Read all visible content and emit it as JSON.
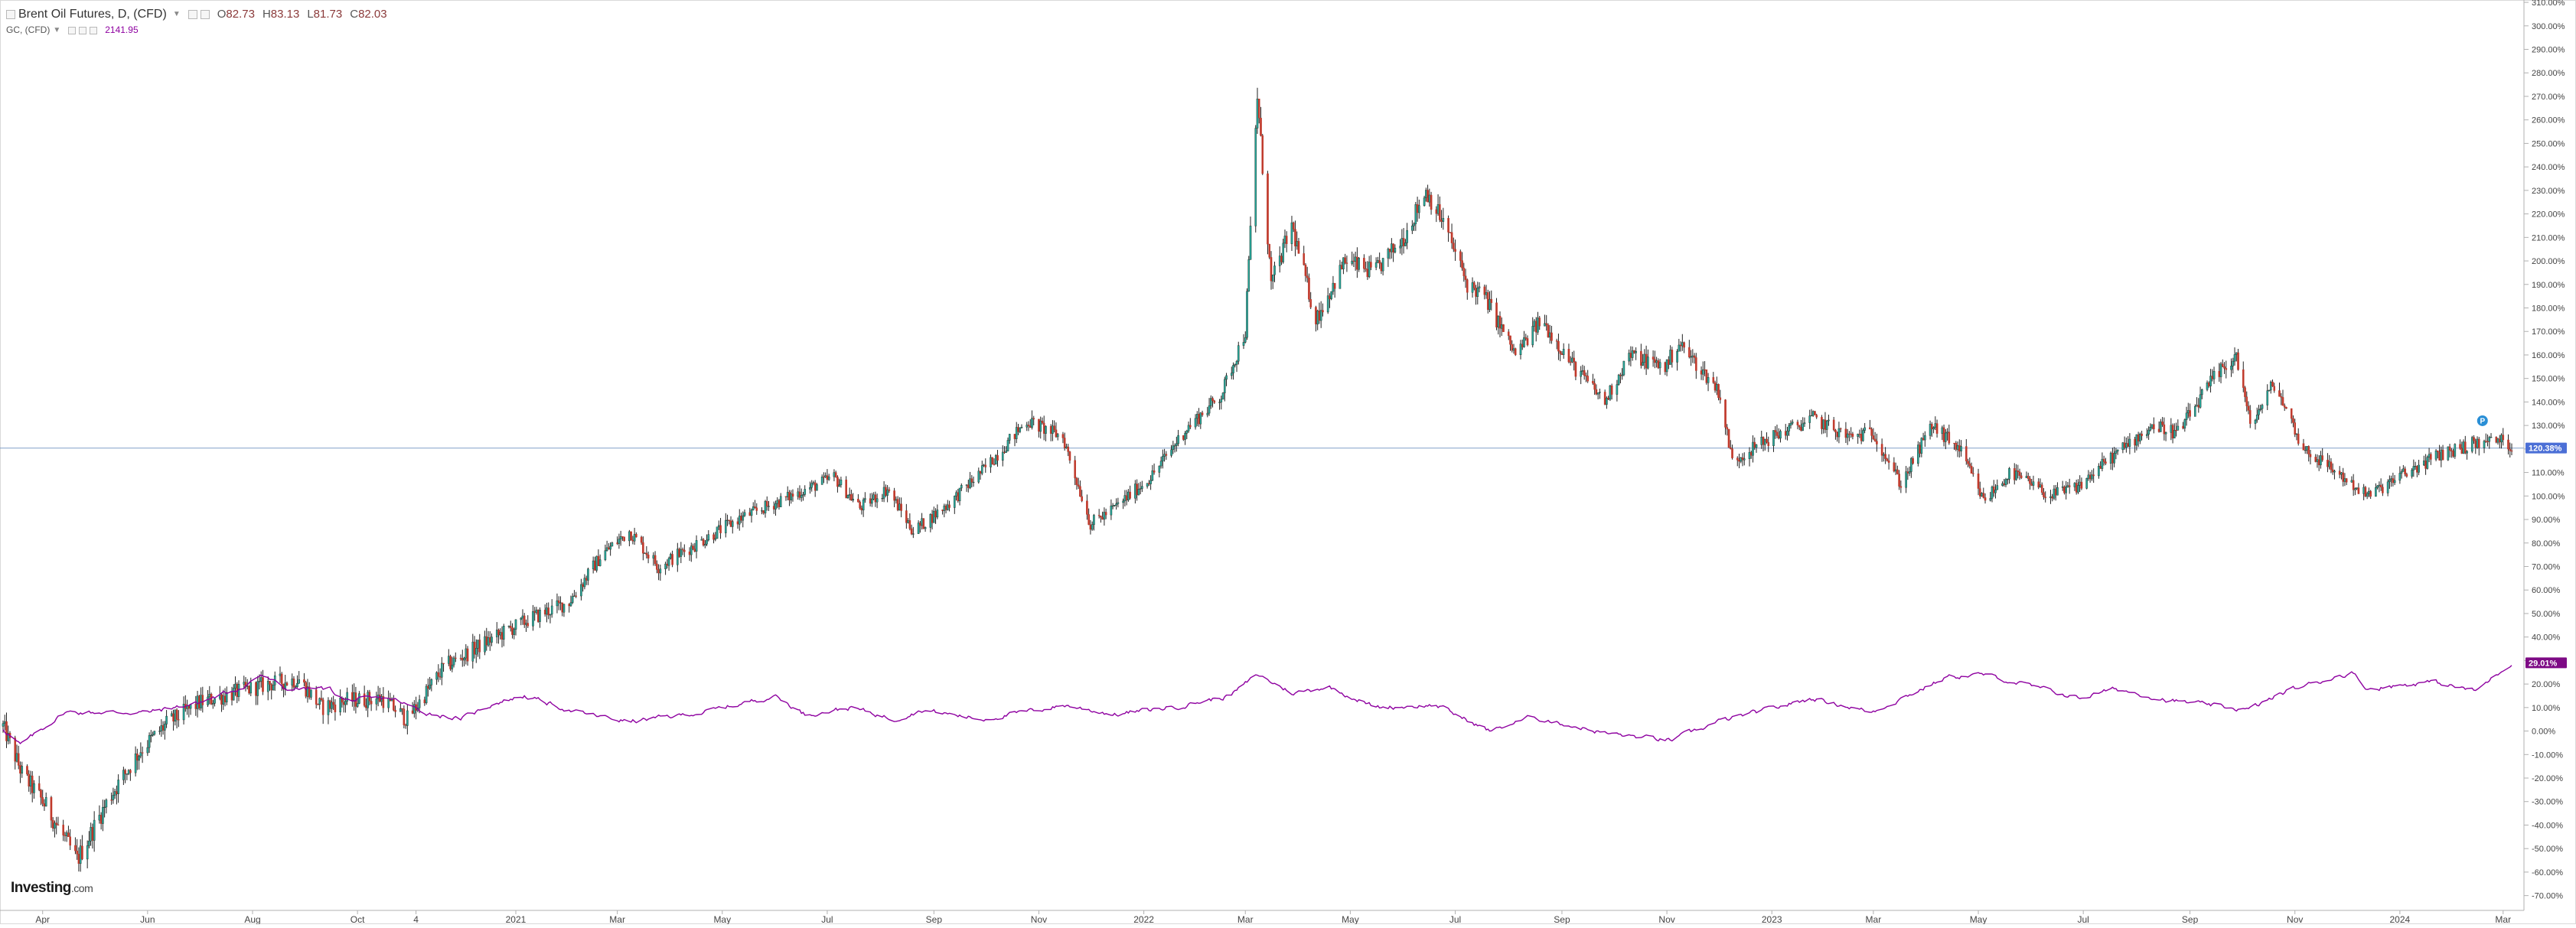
{
  "legend": {
    "title": "Brent Oil Futures, D, (CFD)",
    "o_label": "O",
    "o_value": "82.73",
    "h_label": "H",
    "h_value": "83.13",
    "l_label": "L",
    "l_value": "81.73",
    "c_label": "C",
    "c_value": "82.03",
    "compare_title": "GC, (CFD)",
    "compare_value": "2141.95"
  },
  "brand": {
    "name": "Investing",
    "suffix": ".com"
  },
  "colors": {
    "up": "#26a69a",
    "up_outline": "#1f2a1f",
    "down": "#c0392b",
    "compare": "#8e00a0",
    "baseline": "#6c8ebf",
    "price_badge": "#4b6fd6",
    "compare_badge": "#7d0a85",
    "axis": "#b0b0b0",
    "tick_text": "#444444"
  },
  "marker": {
    "label": "P"
  },
  "chart_data": {
    "type": "candlestick",
    "y_unit": "%",
    "ylim": [
      -75,
      311
    ],
    "y_ticks": [
      "310.00%",
      "300.00%",
      "290.00%",
      "280.00%",
      "270.00%",
      "260.00%",
      "250.00%",
      "240.00%",
      "230.00%",
      "220.00%",
      "210.00%",
      "200.00%",
      "190.00%",
      "180.00%",
      "170.00%",
      "160.00%",
      "150.00%",
      "140.00%",
      "130.00%",
      "120.00%",
      "110.00%",
      "100.00%",
      "90.00%",
      "80.00%",
      "70.00%",
      "60.00%",
      "50.00%",
      "40.00%",
      "30.00%",
      "20.00%",
      "10.00%",
      "0.00%",
      "-10.00%",
      "-20.00%",
      "-30.00%",
      "-40.00%",
      "-50.00%",
      "-60.00%",
      "-70.00%"
    ],
    "x_ticks": [
      "Apr",
      "Jun",
      "Aug",
      "Oct",
      "4",
      "2021",
      "Mar",
      "May",
      "Jul",
      "Sep",
      "Nov",
      "2022",
      "Mar",
      "May",
      "Jul",
      "Sep",
      "Nov",
      "2023",
      "Mar",
      "May",
      "Jul",
      "Sep",
      "Nov",
      "2024",
      "Mar"
    ],
    "x_tick_dates": [
      "2020-04-01",
      "2020-06-01",
      "2020-08-01",
      "2020-10-01",
      "2020-11-04",
      "2021-01-01",
      "2021-03-01",
      "2021-05-01",
      "2021-07-01",
      "2021-09-01",
      "2021-11-01",
      "2022-01-01",
      "2022-03-01",
      "2022-05-01",
      "2022-07-01",
      "2022-09-01",
      "2022-11-01",
      "2023-01-01",
      "2023-03-01",
      "2023-05-01",
      "2023-07-01",
      "2023-09-01",
      "2023-11-01",
      "2024-01-01",
      "2024-03-01"
    ],
    "x_range": [
      "2020-03-09",
      "2024-03-06"
    ],
    "baseline_value": 120.38,
    "price_badge": "120.38%",
    "compare_badge": "29.01%",
    "series": [
      {
        "name": "Brent Oil Futures, D, (CFD)",
        "style": "candles",
        "anchors": [
          [
            "2020-03-09",
            2
          ],
          [
            "2020-03-20",
            -18
          ],
          [
            "2020-04-03",
            -32
          ],
          [
            "2020-04-21",
            -55
          ],
          [
            "2020-05-10",
            -28
          ],
          [
            "2020-05-28",
            -8
          ],
          [
            "2020-06-12",
            3
          ],
          [
            "2020-07-01",
            12
          ],
          [
            "2020-07-20",
            16
          ],
          [
            "2020-08-10",
            20
          ],
          [
            "2020-08-28",
            22
          ],
          [
            "2020-09-10",
            10
          ],
          [
            "2020-09-25",
            13
          ],
          [
            "2020-10-15",
            14
          ],
          [
            "2020-10-30",
            5
          ],
          [
            "2020-11-20",
            27
          ],
          [
            "2020-12-15",
            38
          ],
          [
            "2021-01-10",
            48
          ],
          [
            "2021-02-01",
            55
          ],
          [
            "2021-02-20",
            75
          ],
          [
            "2021-03-08",
            85
          ],
          [
            "2021-03-25",
            70
          ],
          [
            "2021-04-10",
            77
          ],
          [
            "2021-05-10",
            90
          ],
          [
            "2021-06-10",
            100
          ],
          [
            "2021-07-05",
            108
          ],
          [
            "2021-07-20",
            95
          ],
          [
            "2021-08-05",
            103
          ],
          [
            "2021-08-20",
            85
          ],
          [
            "2021-09-10",
            97
          ],
          [
            "2021-10-01",
            112
          ],
          [
            "2021-10-25",
            132
          ],
          [
            "2021-11-15",
            125
          ],
          [
            "2021-12-01",
            88
          ],
          [
            "2021-12-15",
            95
          ],
          [
            "2022-01-05",
            108
          ],
          [
            "2022-01-25",
            128
          ],
          [
            "2022-02-15",
            143
          ],
          [
            "2022-03-01",
            170
          ],
          [
            "2022-03-08",
            270
          ],
          [
            "2022-03-16",
            190
          ],
          [
            "2022-03-28",
            215
          ],
          [
            "2022-04-11",
            175
          ],
          [
            "2022-04-28",
            200
          ],
          [
            "2022-05-15",
            195
          ],
          [
            "2022-06-01",
            210
          ],
          [
            "2022-06-14",
            230
          ],
          [
            "2022-06-25",
            215
          ],
          [
            "2022-07-08",
            190
          ],
          [
            "2022-07-18",
            185
          ],
          [
            "2022-08-05",
            160
          ],
          [
            "2022-08-20",
            175
          ],
          [
            "2022-09-08",
            155
          ],
          [
            "2022-09-26",
            140
          ],
          [
            "2022-10-10",
            160
          ],
          [
            "2022-10-31",
            155
          ],
          [
            "2022-11-08",
            165
          ],
          [
            "2022-12-01",
            145
          ],
          [
            "2022-12-09",
            115
          ],
          [
            "2023-01-01",
            125
          ],
          [
            "2023-01-25",
            133
          ],
          [
            "2023-02-15",
            125
          ],
          [
            "2023-03-01",
            127
          ],
          [
            "2023-03-17",
            105
          ],
          [
            "2023-04-04",
            130
          ],
          [
            "2023-04-20",
            120
          ],
          [
            "2023-05-04",
            98
          ],
          [
            "2023-05-20",
            110
          ],
          [
            "2023-06-12",
            100
          ],
          [
            "2023-06-28",
            104
          ],
          [
            "2023-07-15",
            115
          ],
          [
            "2023-08-10",
            130
          ],
          [
            "2023-08-25",
            127
          ],
          [
            "2023-09-15",
            150
          ],
          [
            "2023-09-28",
            160
          ],
          [
            "2023-10-06",
            130
          ],
          [
            "2023-10-20",
            148
          ],
          [
            "2023-11-06",
            120
          ],
          [
            "2023-11-20",
            113
          ],
          [
            "2023-12-13",
            100
          ],
          [
            "2024-01-05",
            110
          ],
          [
            "2024-01-25",
            118
          ],
          [
            "2024-02-12",
            122
          ],
          [
            "2024-02-28",
            124
          ],
          [
            "2024-03-06",
            120.38
          ]
        ]
      },
      {
        "name": "GC, (CFD)",
        "style": "line",
        "anchors": [
          [
            "2020-03-09",
            1
          ],
          [
            "2020-03-19",
            -6
          ],
          [
            "2020-04-14",
            8
          ],
          [
            "2020-06-01",
            8
          ],
          [
            "2020-07-01",
            12
          ],
          [
            "2020-07-27",
            19
          ],
          [
            "2020-08-06",
            24
          ],
          [
            "2020-08-20",
            18
          ],
          [
            "2020-09-15",
            18
          ],
          [
            "2020-09-24",
            13
          ],
          [
            "2020-10-20",
            14
          ],
          [
            "2020-11-09",
            8
          ],
          [
            "2020-11-30",
            5
          ],
          [
            "2020-12-20",
            12
          ],
          [
            "2021-01-06",
            15
          ],
          [
            "2021-02-05",
            8
          ],
          [
            "2021-03-08",
            4
          ],
          [
            "2021-04-20",
            8
          ],
          [
            "2021-06-01",
            15
          ],
          [
            "2021-06-18",
            7
          ],
          [
            "2021-07-15",
            10
          ],
          [
            "2021-08-09",
            5
          ],
          [
            "2021-08-25",
            9
          ],
          [
            "2021-09-29",
            5
          ],
          [
            "2021-11-16",
            11
          ],
          [
            "2021-12-15",
            7
          ],
          [
            "2022-01-25",
            11
          ],
          [
            "2022-02-20",
            15
          ],
          [
            "2022-03-08",
            24
          ],
          [
            "2022-03-29",
            16
          ],
          [
            "2022-04-18",
            19
          ],
          [
            "2022-05-16",
            10
          ],
          [
            "2022-06-20",
            11
          ],
          [
            "2022-07-21",
            0
          ],
          [
            "2022-08-15",
            6
          ],
          [
            "2022-09-27",
            -1
          ],
          [
            "2022-11-03",
            -4
          ],
          [
            "2022-12-01",
            4
          ],
          [
            "2023-01-25",
            14
          ],
          [
            "2023-02-28",
            8
          ],
          [
            "2023-04-13",
            23
          ],
          [
            "2023-05-04",
            24
          ],
          [
            "2023-06-29",
            14
          ],
          [
            "2023-07-20",
            18
          ],
          [
            "2023-08-20",
            13
          ],
          [
            "2023-10-05",
            9
          ],
          [
            "2023-10-27",
            17
          ],
          [
            "2023-12-04",
            25
          ],
          [
            "2023-12-13",
            18
          ],
          [
            "2024-01-20",
            21
          ],
          [
            "2024-02-14",
            17
          ],
          [
            "2024-03-06",
            29
          ]
        ]
      }
    ]
  }
}
